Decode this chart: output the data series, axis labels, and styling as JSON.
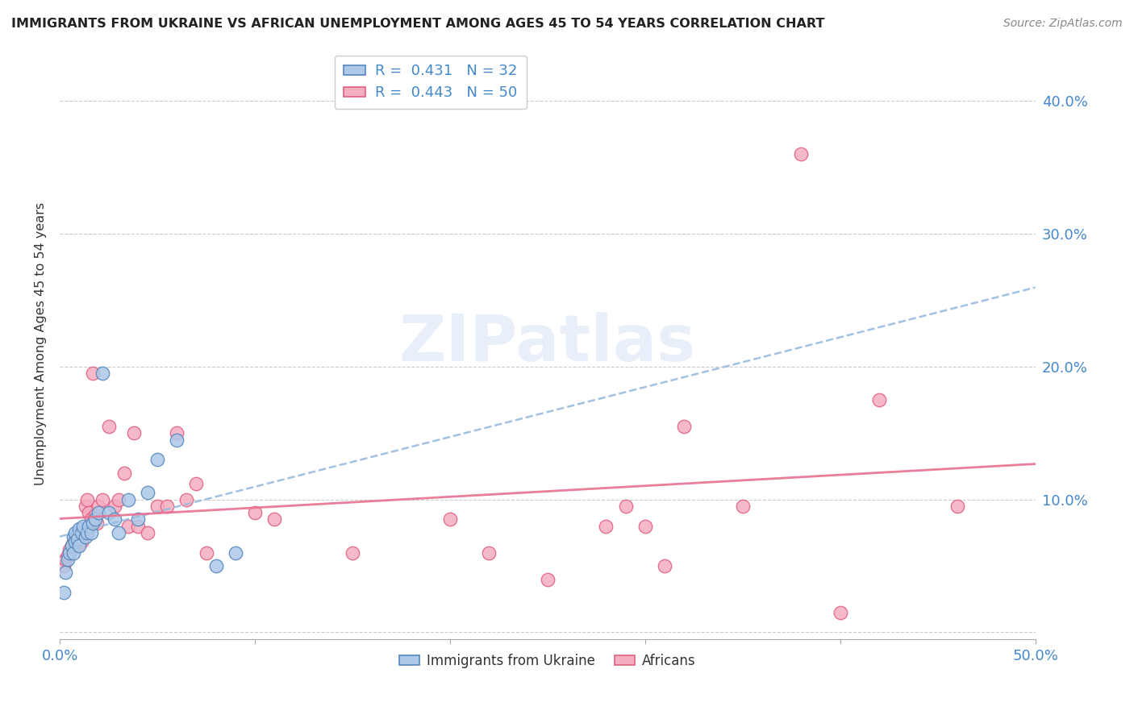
{
  "title": "IMMIGRANTS FROM UKRAINE VS AFRICAN UNEMPLOYMENT AMONG AGES 45 TO 54 YEARS CORRELATION CHART",
  "source": "Source: ZipAtlas.com",
  "ylabel": "Unemployment Among Ages 45 to 54 years",
  "ytick_vals": [
    0.0,
    0.1,
    0.2,
    0.3,
    0.4
  ],
  "ytick_labels": [
    "",
    "10.0%",
    "20.0%",
    "30.0%",
    "40.0%"
  ],
  "xlim": [
    0.0,
    0.5
  ],
  "ylim": [
    -0.005,
    0.44
  ],
  "legend1_label": "R =  0.431   N = 32",
  "legend2_label": "R =  0.443   N = 50",
  "legend_bottom_label1": "Immigrants from Ukraine",
  "legend_bottom_label2": "Africans",
  "ukraine_color": "#adc8e8",
  "african_color": "#f5adc0",
  "ukraine_edge_color": "#5588bb",
  "african_edge_color": "#e06080",
  "ukraine_line_color": "#88aacc",
  "african_line_color": "#e87090",
  "watermark_text": "ZIPatlas",
  "ukraine_x": [
    0.002,
    0.003,
    0.004,
    0.005,
    0.006,
    0.007,
    0.007,
    0.008,
    0.008,
    0.009,
    0.01,
    0.01,
    0.011,
    0.012,
    0.013,
    0.014,
    0.015,
    0.016,
    0.017,
    0.018,
    0.02,
    0.022,
    0.025,
    0.028,
    0.03,
    0.035,
    0.04,
    0.045,
    0.05,
    0.06,
    0.08,
    0.09
  ],
  "ukraine_y": [
    0.03,
    0.045,
    0.055,
    0.06,
    0.065,
    0.06,
    0.072,
    0.068,
    0.075,
    0.07,
    0.065,
    0.078,
    0.075,
    0.08,
    0.072,
    0.075,
    0.08,
    0.075,
    0.082,
    0.085,
    0.09,
    0.195,
    0.09,
    0.085,
    0.075,
    0.1,
    0.085,
    0.105,
    0.13,
    0.145,
    0.05,
    0.06
  ],
  "african_x": [
    0.002,
    0.003,
    0.004,
    0.005,
    0.006,
    0.007,
    0.008,
    0.009,
    0.01,
    0.011,
    0.012,
    0.013,
    0.014,
    0.015,
    0.016,
    0.017,
    0.018,
    0.019,
    0.02,
    0.022,
    0.025,
    0.028,
    0.03,
    0.033,
    0.035,
    0.038,
    0.04,
    0.045,
    0.05,
    0.055,
    0.06,
    0.065,
    0.07,
    0.075,
    0.1,
    0.11,
    0.15,
    0.2,
    0.22,
    0.25,
    0.28,
    0.29,
    0.3,
    0.31,
    0.32,
    0.35,
    0.38,
    0.4,
    0.42,
    0.46
  ],
  "african_y": [
    0.05,
    0.055,
    0.058,
    0.062,
    0.065,
    0.068,
    0.07,
    0.065,
    0.072,
    0.068,
    0.075,
    0.095,
    0.1,
    0.09,
    0.085,
    0.195,
    0.088,
    0.082,
    0.095,
    0.1,
    0.155,
    0.095,
    0.1,
    0.12,
    0.08,
    0.15,
    0.08,
    0.075,
    0.095,
    0.095,
    0.15,
    0.1,
    0.112,
    0.06,
    0.09,
    0.085,
    0.06,
    0.085,
    0.06,
    0.04,
    0.08,
    0.095,
    0.08,
    0.05,
    0.155,
    0.095,
    0.36,
    0.015,
    0.175,
    0.095
  ]
}
